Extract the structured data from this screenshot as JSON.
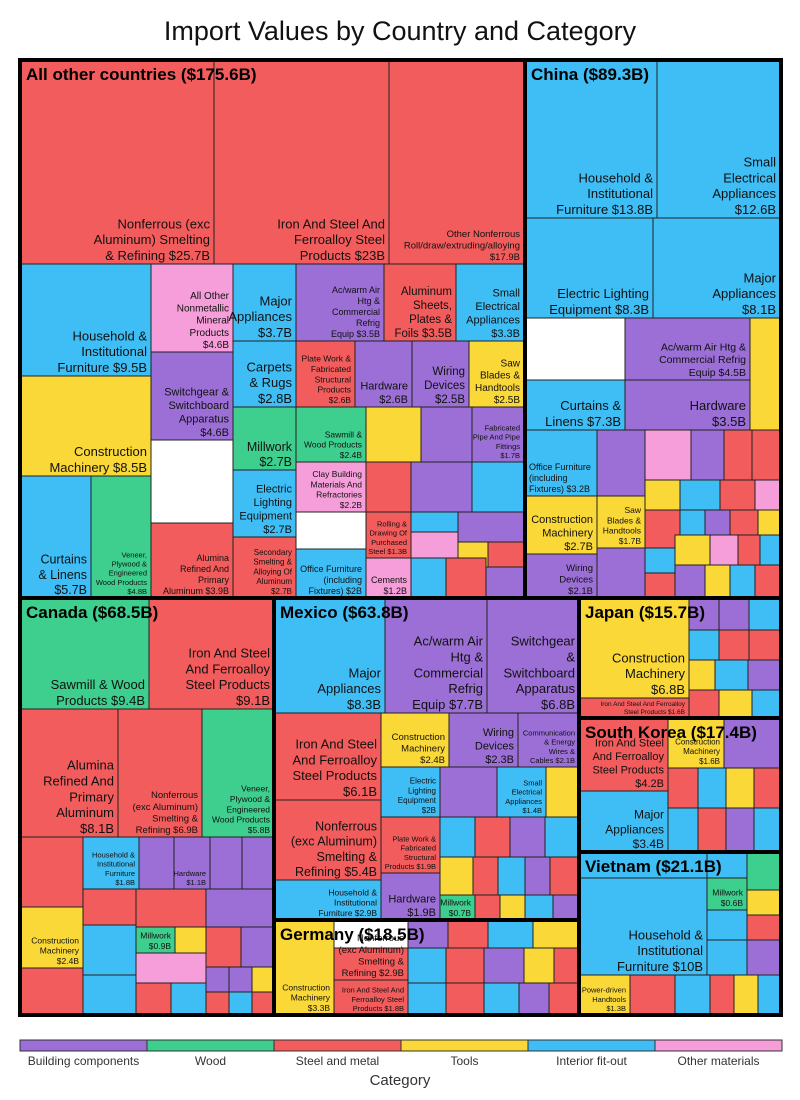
{
  "colors": {
    "building": "#9b6fd6",
    "wood": "#3ecf8e",
    "steel": "#f25c5c",
    "tools": "#fad838",
    "interior": "#3fbdf5",
    "other": "#f59ed9"
  },
  "chart_data": {
    "type": "treemap",
    "title": "Import Values by Country and Category",
    "legend": {
      "title": "Category",
      "placement": "bottom",
      "items": [
        {
          "key": "building",
          "label": "Building components"
        },
        {
          "key": "wood",
          "label": "Wood"
        },
        {
          "key": "steel",
          "label": "Steel and metal"
        },
        {
          "key": "tools",
          "label": "Tools"
        },
        {
          "key": "interior",
          "label": "Interior fit-out"
        },
        {
          "key": "other",
          "label": "Other materials"
        }
      ]
    },
    "countries": [
      {
        "name": "All other countries",
        "label": "All other countries ($175.6B)",
        "value": 175.6,
        "labeled": [
          {
            "name": "Nonferrous (exc Aluminum) Smelting & Refining",
            "label": "Nonferrous (exc\nAluminum) Smelting\n& Refining $25.7B",
            "value": 25.7,
            "category": "steel"
          },
          {
            "name": "Iron And Steel And Ferroalloy Steel Products",
            "label": "Iron And Steel And\nFerroalloy Steel\nProducts $23B",
            "value": 23,
            "category": "steel"
          },
          {
            "name": "Other Nonferrous Roll/draw/extruding/alloying",
            "label": "Other Nonferrous\nRoll/draw/extruding/alloying\n$17.9B",
            "value": 17.9,
            "category": "steel"
          },
          {
            "name": "Household & Institutional Furniture",
            "label": "Household &\nInstitutional\nFurniture $9.5B",
            "value": 9.5,
            "category": "interior"
          },
          {
            "name": "All Other Nonmetallic Mineral Products",
            "label": "All Other\nNonmetallic\nMineral\nProducts\n$4.6B",
            "value": 4.6,
            "category": "other"
          },
          {
            "name": "Major Appliances",
            "label": "Major\nAppliances\n$3.7B",
            "value": 3.7,
            "category": "interior"
          },
          {
            "name": "Ac/warm Air Htg & Commercial Refrig Equip",
            "label": "Ac/warm Air\nHtg &\nCommercial\nRefrig\nEquip $3.5B",
            "value": 3.5,
            "category": "building"
          },
          {
            "name": "Aluminum Sheets, Plates & Foils",
            "label": "Aluminum\nSheets,\nPlates &\nFoils $3.5B",
            "value": 3.5,
            "category": "steel"
          },
          {
            "name": "Small Electrical Appliances",
            "label": "Small\nElectrical\nAppliances\n$3.3B",
            "value": 3.3,
            "category": "interior"
          },
          {
            "name": "Construction Machinery",
            "label": "Construction\nMachinery $8.5B",
            "value": 8.5,
            "category": "tools"
          },
          {
            "name": "Switchgear & Switchboard Apparatus",
            "label": "Switchgear &\nSwitchboard\nApparatus\n$4.6B",
            "value": 4.6,
            "category": "building"
          },
          {
            "name": "Carpets & Rugs",
            "label": "Carpets\n& Rugs\n$2.8B",
            "value": 2.8,
            "category": "interior"
          },
          {
            "name": "Plate Work & Fabricated Structural Products",
            "label": "Plate Work &\nFabricated\nStructural\nProducts\n$2.6B",
            "value": 2.6,
            "category": "steel"
          },
          {
            "name": "Hardware",
            "label": "Hardware\n$2.6B",
            "value": 2.6,
            "category": "building"
          },
          {
            "name": "Wiring Devices",
            "label": "Wiring\nDevices\n$2.5B",
            "value": 2.5,
            "category": "building"
          },
          {
            "name": "Saw Blades & Handtools",
            "label": "Saw\nBlades &\nHandtools\n$2.5B",
            "value": 2.5,
            "category": "tools"
          },
          {
            "name": "Millwork",
            "label": "Millwork\n$2.7B",
            "value": 2.7,
            "category": "wood"
          },
          {
            "name": "Sawmill & Wood Products",
            "label": "Sawmill &\nWood Products\n$2.4B",
            "value": 2.4,
            "category": "wood"
          },
          {
            "name": "Fabricated Pipe And Pipe Fittings",
            "label": "Fabricated\nPipe And Pipe\nFittings\n$1.7B",
            "value": 1.7,
            "category": "building"
          },
          {
            "name": "Clay Building Materials And Refractories",
            "label": "Clay Building\nMaterials And\nRefractories\n$2.2B",
            "value": 2.2,
            "category": "other"
          },
          {
            "name": "Curtains & Linens",
            "label": "Curtains\n& Linens\n$5.7B",
            "value": 5.7,
            "category": "interior"
          },
          {
            "name": "Veneer, Plywood & Engineered Wood Products",
            "label": "Veneer,\nPlywood &\nEngineered\nWood Products\n$4.8B",
            "value": 4.8,
            "category": "wood"
          },
          {
            "name": "Alumina Refined And Primary Aluminum",
            "label": "Alumina\nRefined And\nPrimary\nAluminum $3.9B",
            "value": 3.9,
            "category": "steel"
          },
          {
            "name": "Electric Lighting Equipment",
            "label": "Electric\nLighting\nEquipment\n$2.7B",
            "value": 2.7,
            "category": "interior"
          },
          {
            "name": "Secondary Smelting & Alloying Of Aluminum",
            "label": "Secondary\nSmelting &\nAlloying Of\nAluminum\n$2.7B",
            "value": 2.7,
            "category": "steel"
          },
          {
            "name": "Office Furniture (including Fixtures)",
            "label": "Office Furniture\n(including\nFixtures) $2B",
            "value": 2,
            "category": "interior"
          },
          {
            "name": "Rolling & Drawing Of Purchased Steel",
            "label": "Rolling &\nDrawing Of\nPurchased\nSteel $1.3B",
            "value": 1.3,
            "category": "steel"
          },
          {
            "name": "Cements",
            "label": "Cements\n$1.2B",
            "value": 1.2,
            "category": "other"
          }
        ]
      },
      {
        "name": "China",
        "label": "China ($89.3B)",
        "value": 89.3,
        "labeled": [
          {
            "name": "Household & Institutional Furniture",
            "label": "Household &\nInstitutional\nFurniture $13.8B",
            "value": 13.8,
            "category": "interior"
          },
          {
            "name": "Small Electrical Appliances",
            "label": "Small\nElectrical\nAppliances\n$12.6B",
            "value": 12.6,
            "category": "interior"
          },
          {
            "name": "Electric Lighting Equipment",
            "label": "Electric Lighting\nEquipment $8.3B",
            "value": 8.3,
            "category": "interior"
          },
          {
            "name": "Major Appliances",
            "label": "Major\nAppliances\n$8.1B",
            "value": 8.1,
            "category": "interior"
          },
          {
            "name": "Ac/warm Air Htg & Commercial Refrig Equip",
            "label": "Ac/warm Air Htg &\nCommercial Refrig\nEquip $4.5B",
            "value": 4.5,
            "category": "building"
          },
          {
            "name": "Curtains & Linens",
            "label": "Curtains &\nLinens $7.3B",
            "value": 7.3,
            "category": "interior"
          },
          {
            "name": "Hardware",
            "label": "Hardware\n$3.5B",
            "value": 3.5,
            "category": "building"
          },
          {
            "name": "Office Furniture (including Fixtures)",
            "label": "Office Furniture\n(including\nFixtures) $3.2B",
            "value": 3.2,
            "category": "interior"
          },
          {
            "name": "Construction Machinery",
            "label": "Construction\nMachinery\n$2.7B",
            "value": 2.7,
            "category": "tools"
          },
          {
            "name": "Saw Blades & Handtools",
            "label": "Saw\nBlades &\nHandtools\n$1.7B",
            "value": 1.7,
            "category": "tools"
          },
          {
            "name": "Wiring Devices",
            "label": "Wiring\nDevices\n$2.1B",
            "value": 2.1,
            "category": "building"
          }
        ]
      },
      {
        "name": "Canada",
        "label": "Canada ($68.5B)",
        "value": 68.5,
        "labeled": [
          {
            "name": "Sawmill & Wood Products",
            "label": "Sawmill & Wood\nProducts $9.4B",
            "value": 9.4,
            "category": "wood"
          },
          {
            "name": "Iron And Steel And Ferroalloy Steel Products",
            "label": "Iron And Steel\nAnd Ferroalloy\nSteel Products\n$9.1B",
            "value": 9.1,
            "category": "steel"
          },
          {
            "name": "Alumina Refined And Primary Aluminum",
            "label": "Alumina\nRefined And\nPrimary\nAluminum\n$8.1B",
            "value": 8.1,
            "category": "steel"
          },
          {
            "name": "Nonferrous (exc Aluminum) Smelting & Refining",
            "label": "Nonferrous\n(exc Aluminum)\nSmelting &\nRefining $6.9B",
            "value": 6.9,
            "category": "steel"
          },
          {
            "name": "Veneer, Plywood & Engineered Wood Products",
            "label": "Veneer,\nPlywood &\nEngineered\nWood Products\n$5.8B",
            "value": 5.8,
            "category": "wood"
          },
          {
            "name": "Household & Institutional Furniture",
            "label": "Household &\nInstitutional\nFurniture\n$1.8B",
            "value": 1.8,
            "category": "interior"
          },
          {
            "name": "Hardware",
            "label": "Hardware\n$1.1B",
            "value": 1.1,
            "category": "building"
          },
          {
            "name": "Construction Machinery",
            "label": "Construction\nMachinery\n$2.4B",
            "value": 2.4,
            "category": "tools"
          },
          {
            "name": "Millwork",
            "label": "Millwork\n$0.9B",
            "value": 0.9,
            "category": "wood"
          }
        ]
      },
      {
        "name": "Mexico",
        "label": "Mexico ($63.8B)",
        "value": 63.8,
        "labeled": [
          {
            "name": "Major Appliances",
            "label": "Major\nAppliances\n$8.3B",
            "value": 8.3,
            "category": "interior"
          },
          {
            "name": "Ac/warm Air Htg & Commercial Refrig Equip",
            "label": "Ac/warm Air\nHtg &\nCommercial\nRefrig\nEquip $7.7B",
            "value": 7.7,
            "category": "building"
          },
          {
            "name": "Switchgear & Switchboard Apparatus",
            "label": "Switchgear\n&\nSwitchboard\nApparatus\n$6.8B",
            "value": 6.8,
            "category": "building"
          },
          {
            "name": "Iron And Steel And Ferroalloy Steel Products",
            "label": "Iron And Steel\nAnd Ferroalloy\nSteel Products\n$6.1B",
            "value": 6.1,
            "category": "steel"
          },
          {
            "name": "Construction Machinery",
            "label": "Construction\nMachinery\n$2.4B",
            "value": 2.4,
            "category": "tools"
          },
          {
            "name": "Wiring Devices",
            "label": "Wiring\nDevices\n$2.3B",
            "value": 2.3,
            "category": "building"
          },
          {
            "name": "Communication & Energy Wires & Cables",
            "label": "Communication\n& Energy\nWires &\nCables $2.1B",
            "value": 2.1,
            "category": "building"
          },
          {
            "name": "Electric Lighting Equipment",
            "label": "Electric\nLighting\nEquipment\n$2B",
            "value": 2,
            "category": "interior"
          },
          {
            "name": "Small Electrical Appliances",
            "label": "Small\nElectrical\nAppliances\n$1.4B",
            "value": 1.4,
            "category": "interior"
          },
          {
            "name": "Nonferrous (exc Aluminum) Smelting & Refining",
            "label": "Nonferrous\n(exc Aluminum)\nSmelting &\nRefining $5.4B",
            "value": 5.4,
            "category": "steel"
          },
          {
            "name": "Plate Work & Fabricated Structural Products",
            "label": "Plate Work &\nFabricated\nStructural\nProducts $1.9B",
            "value": 1.9,
            "category": "steel"
          },
          {
            "name": "Household & Institutional Furniture",
            "label": "Household &\nInstitutional\nFurniture $2.9B",
            "value": 2.9,
            "category": "interior"
          },
          {
            "name": "Hardware",
            "label": "Hardware\n$1.9B",
            "value": 1.9,
            "category": "building"
          },
          {
            "name": "Millwork",
            "label": "Millwork\n$0.7B",
            "value": 0.7,
            "category": "wood"
          }
        ]
      },
      {
        "name": "Japan",
        "label": "Japan ($15.7B)",
        "value": 15.7,
        "labeled": [
          {
            "name": "Construction Machinery",
            "label": "Construction\nMachinery\n$6.8B",
            "value": 6.8,
            "category": "tools"
          },
          {
            "name": "Iron And Steel And Ferroalloy Steel Products",
            "label": "Iron And Steel And Ferroalloy\nSteel Products $1.6B",
            "value": 1.6,
            "category": "steel"
          }
        ]
      },
      {
        "name": "South Korea",
        "label": "South Korea ($17.4B)",
        "value": 17.4,
        "labeled": [
          {
            "name": "Iron And Steel And Ferroalloy Steel Products",
            "label": "Iron And Steel\nAnd Ferroalloy\nSteel Products\n$4.2B",
            "value": 4.2,
            "category": "steel"
          },
          {
            "name": "Construction Machinery",
            "label": "Construction\nMachinery\n$1.6B",
            "value": 1.6,
            "category": "tools"
          },
          {
            "name": "Major Appliances",
            "label": "Major\nAppliances\n$3.4B",
            "value": 3.4,
            "category": "interior"
          }
        ]
      },
      {
        "name": "Vietnam",
        "label": "Vietnam ($21.1B)",
        "value": 21.1,
        "labeled": [
          {
            "name": "Millwork",
            "label": "Millwork\n$0.6B",
            "value": 0.6,
            "category": "wood"
          },
          {
            "name": "Household & Institutional Furniture",
            "label": "Household &\nInstitutional\nFurniture $10B",
            "value": 10,
            "category": "interior"
          },
          {
            "name": "Power-driven Handtools",
            "label": "Power-driven\nHandtools\n$1.3B",
            "value": 1.3,
            "category": "tools"
          }
        ]
      },
      {
        "name": "Germany",
        "label": "Germany ($18.5B)",
        "value": 18.5,
        "labeled": [
          {
            "name": "Construction Machinery",
            "label": "Construction\nMachinery\n$3.3B",
            "value": 3.3,
            "category": "tools"
          },
          {
            "name": "Nonferrous (exc Aluminum) Smelting & Refining",
            "label": "Nonferrous\n(exc Aluminum)\nSmelting &\nRefining $2.9B",
            "value": 2.9,
            "category": "steel"
          },
          {
            "name": "Iron And Steel And Ferroalloy Steel Products",
            "label": "Iron And Steel And\nFerroalloy Steel\nProducts $1.8B",
            "value": 1.8,
            "category": "steel"
          }
        ]
      }
    ]
  }
}
